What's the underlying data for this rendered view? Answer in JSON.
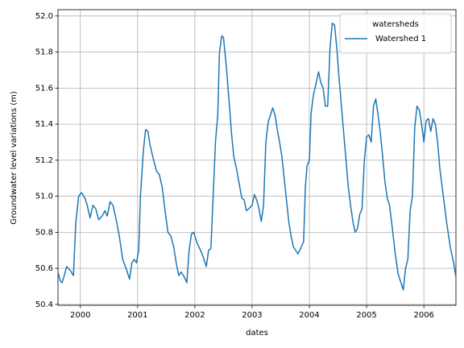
{
  "chart_data": {
    "type": "line",
    "xlabel": "dates",
    "ylabel": "Groundwater level variations (m)",
    "legend_title": "watersheds",
    "legend_loc": "upper right",
    "grid": true,
    "xlim": [
      1999.61,
      2006.56
    ],
    "xticks": [
      2000,
      2001,
      2002,
      2003,
      2004,
      2005,
      2006
    ],
    "ylim": [
      50.395,
      52.035
    ],
    "yticks": [
      50.4,
      50.6,
      50.8,
      {
        "value": 51,
        "label": "51.0"
      },
      51.2,
      51.4,
      51.6,
      51.8,
      {
        "value": 52,
        "label": "52.0"
      }
    ],
    "x": [
      1999.61,
      1999.65,
      1999.68,
      1999.72,
      1999.76,
      1999.82,
      1999.88,
      1999.92,
      1999.97,
      2000.02,
      2000.08,
      2000.12,
      2000.17,
      2000.22,
      2000.27,
      2000.32,
      2000.38,
      2000.43,
      2000.47,
      2000.52,
      2000.57,
      2000.62,
      2000.68,
      2000.74,
      2000.82,
      2000.86,
      2000.9,
      2000.94,
      2000.98,
      2001.02,
      2001.05,
      2001.1,
      2001.14,
      2001.18,
      2001.22,
      2001.28,
      2001.33,
      2001.38,
      2001.43,
      2001.48,
      2001.53,
      2001.58,
      2001.63,
      2001.68,
      2001.72,
      2001.76,
      2001.82,
      2001.86,
      2001.9,
      2001.94,
      2001.98,
      2002.04,
      2002.1,
      2002.15,
      2002.2,
      2002.24,
      2002.28,
      2002.32,
      2002.36,
      2002.4,
      2002.43,
      2002.47,
      2002.5,
      2002.55,
      2002.6,
      2002.64,
      2002.68,
      2002.73,
      2002.78,
      2002.82,
      2002.86,
      2002.9,
      2002.94,
      2003.0,
      2003.04,
      2003.08,
      2003.12,
      2003.16,
      2003.2,
      2003.24,
      2003.28,
      2003.32,
      2003.36,
      2003.4,
      2003.44,
      2003.48,
      2003.52,
      2003.56,
      2003.6,
      2003.64,
      2003.68,
      2003.72,
      2003.76,
      2003.8,
      2003.86,
      2003.9,
      2003.93,
      2003.96,
      2004.0,
      2004.03,
      2004.07,
      2004.12,
      2004.16,
      2004.2,
      2004.24,
      2004.28,
      2004.32,
      2004.36,
      2004.4,
      2004.44,
      2004.48,
      2004.52,
      2004.56,
      2004.6,
      2004.64,
      2004.68,
      2004.72,
      2004.76,
      2004.8,
      2004.84,
      2004.88,
      2004.92,
      2004.96,
      2005.0,
      2005.04,
      2005.08,
      2005.12,
      2005.16,
      2005.2,
      2005.24,
      2005.28,
      2005.32,
      2005.36,
      2005.4,
      2005.45,
      2005.5,
      2005.55,
      2005.6,
      2005.64,
      2005.68,
      2005.72,
      2005.76,
      2005.8,
      2005.84,
      2005.88,
      2005.92,
      2005.96,
      2006.0,
      2006.04,
      2006.08,
      2006.12,
      2006.16,
      2006.2,
      2006.24,
      2006.28,
      2006.34,
      2006.4,
      2006.46,
      2006.52,
      2006.56
    ],
    "series": [
      {
        "name": "Watershed 1",
        "color": "#1f77b4",
        "values": [
          50.58,
          50.53,
          50.52,
          50.56,
          50.61,
          50.59,
          50.56,
          50.85,
          51.0,
          51.02,
          50.99,
          50.95,
          50.88,
          50.95,
          50.93,
          50.87,
          50.89,
          50.92,
          50.89,
          50.97,
          50.95,
          50.88,
          50.78,
          50.65,
          50.58,
          50.54,
          50.63,
          50.65,
          50.63,
          50.7,
          51.0,
          51.25,
          51.37,
          51.36,
          51.28,
          51.2,
          51.14,
          51.12,
          51.05,
          50.92,
          50.8,
          50.78,
          50.72,
          50.62,
          50.56,
          50.58,
          50.55,
          50.52,
          50.7,
          50.79,
          50.8,
          50.74,
          50.7,
          50.66,
          50.61,
          50.7,
          50.71,
          51.0,
          51.3,
          51.45,
          51.8,
          51.89,
          51.88,
          51.72,
          51.52,
          51.35,
          51.22,
          51.15,
          51.06,
          50.99,
          50.98,
          50.92,
          50.93,
          50.95,
          51.01,
          50.98,
          50.93,
          50.86,
          50.95,
          51.3,
          51.41,
          51.45,
          51.49,
          51.45,
          51.37,
          51.3,
          51.22,
          51.1,
          50.98,
          50.86,
          50.78,
          50.72,
          50.7,
          50.68,
          50.72,
          50.75,
          51.05,
          51.17,
          51.2,
          51.46,
          51.56,
          51.63,
          51.69,
          51.63,
          51.6,
          51.5,
          51.5,
          51.82,
          51.96,
          51.95,
          51.82,
          51.65,
          51.5,
          51.35,
          51.2,
          51.05,
          50.95,
          50.86,
          50.8,
          50.82,
          50.9,
          50.93,
          51.2,
          51.33,
          51.34,
          51.3,
          51.5,
          51.54,
          51.45,
          51.35,
          51.22,
          51.08,
          50.99,
          50.95,
          50.82,
          50.68,
          50.57,
          50.52,
          50.48,
          50.6,
          50.65,
          50.92,
          51.0,
          51.38,
          51.5,
          51.48,
          51.4,
          51.3,
          51.42,
          51.43,
          51.36,
          51.43,
          51.4,
          51.3,
          51.15,
          51.0,
          50.85,
          50.72,
          50.63,
          50.55
        ]
      }
    ]
  }
}
